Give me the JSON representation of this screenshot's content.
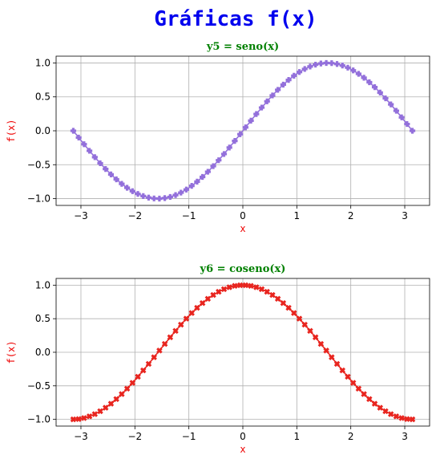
{
  "figure": {
    "suptitle": "Gráficas f(x)",
    "suptitle_color": "#0000ee"
  },
  "chart_data": [
    {
      "type": "line",
      "title": "y5 = seno(x)",
      "title_color": "#008000",
      "xlabel": "x",
      "ylabel": "f(x)",
      "label_color": "#ee0000",
      "line_color": "#9370db",
      "marker": "plus-filled",
      "function": "sin",
      "x_range": [
        -3.14159,
        3.14159
      ],
      "n_points": 64,
      "xlim": [
        -3.46,
        3.46
      ],
      "ylim": [
        -1.1,
        1.1
      ],
      "xticks": [
        -3,
        -2,
        -1,
        0,
        1,
        2,
        3
      ],
      "xtick_labels": [
        "−3",
        "−2",
        "−1",
        "0",
        "1",
        "2",
        "3"
      ],
      "yticks": [
        -1.0,
        -0.5,
        0.0,
        0.5,
        1.0
      ],
      "ytick_labels": [
        "−1.0",
        "−0.5",
        "0.0",
        "0.5",
        "1.0"
      ],
      "grid": true
    },
    {
      "type": "line",
      "title": "y6 = coseno(x)",
      "title_color": "#008000",
      "xlabel": "x",
      "ylabel": "f(x)",
      "label_color": "#ee0000",
      "line_color": "#e8251f",
      "marker": "x-filled",
      "function": "cos",
      "x_range": [
        -3.14159,
        3.14159
      ],
      "n_points": 64,
      "xlim": [
        -3.46,
        3.46
      ],
      "ylim": [
        -1.1,
        1.1
      ],
      "xticks": [
        -3,
        -2,
        -1,
        0,
        1,
        2,
        3
      ],
      "xtick_labels": [
        "−3",
        "−2",
        "−1",
        "0",
        "1",
        "2",
        "3"
      ],
      "yticks": [
        -1.0,
        -0.5,
        0.0,
        0.5,
        1.0
      ],
      "ytick_labels": [
        "−1.0",
        "−0.5",
        "0.0",
        "0.5",
        "1.0"
      ],
      "grid": true
    }
  ]
}
